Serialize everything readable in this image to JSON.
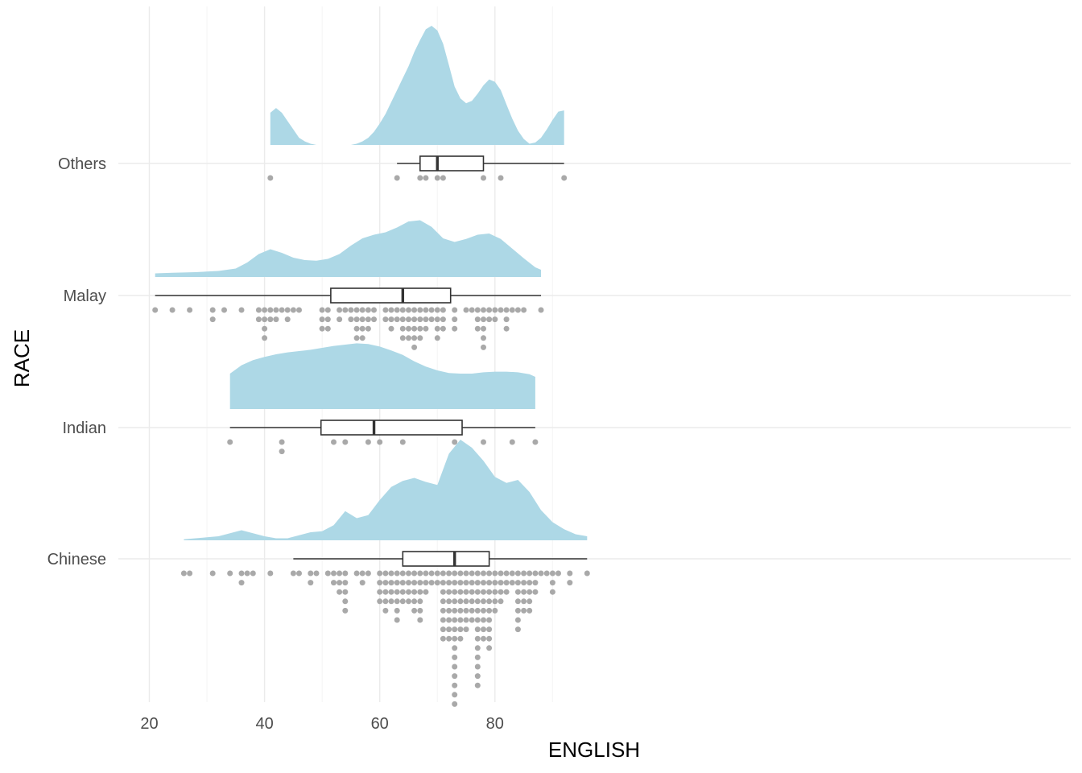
{
  "chart_data": {
    "type": "raincloud",
    "title": "",
    "xlabel": "ENGLISH",
    "ylabel": "RACE",
    "xlim": [
      18.5,
      97.5
    ],
    "x_ticks": [
      20,
      40,
      60,
      80
    ],
    "grid": true,
    "colors": {
      "density": "#add8e6",
      "box_stroke": "#333333",
      "dots": "#a9a9a9",
      "grid_major": "#ebebeb",
      "grid_minor": "#f5f5f5"
    },
    "categories": [
      "Chinese",
      "Indian",
      "Malay",
      "Others"
    ],
    "series": [
      {
        "name": "Chinese",
        "box": {
          "min": 45,
          "q1": 64,
          "median": 73,
          "q3": 79,
          "max": 96
        },
        "density_range": [
          26,
          96
        ],
        "density": [
          [
            26,
            0.01
          ],
          [
            28,
            0.02
          ],
          [
            30,
            0.03
          ],
          [
            32,
            0.04
          ],
          [
            34,
            0.07
          ],
          [
            36,
            0.1
          ],
          [
            38,
            0.07
          ],
          [
            40,
            0.04
          ],
          [
            42,
            0.02
          ],
          [
            44,
            0.02
          ],
          [
            46,
            0.05
          ],
          [
            48,
            0.08
          ],
          [
            50,
            0.09
          ],
          [
            52,
            0.15
          ],
          [
            54,
            0.29
          ],
          [
            56,
            0.22
          ],
          [
            58,
            0.25
          ],
          [
            60,
            0.4
          ],
          [
            62,
            0.53
          ],
          [
            64,
            0.59
          ],
          [
            66,
            0.62
          ],
          [
            68,
            0.58
          ],
          [
            70,
            0.55
          ],
          [
            72,
            0.86
          ],
          [
            74,
            1.0
          ],
          [
            76,
            0.92
          ],
          [
            78,
            0.79
          ],
          [
            80,
            0.63
          ],
          [
            82,
            0.57
          ],
          [
            84,
            0.6
          ],
          [
            86,
            0.48
          ],
          [
            88,
            0.3
          ],
          [
            90,
            0.18
          ],
          [
            92,
            0.11
          ],
          [
            94,
            0.06
          ],
          [
            96,
            0.04
          ]
        ],
        "dots": [
          [
            26,
            1
          ],
          [
            27,
            1
          ],
          [
            31,
            1
          ],
          [
            34,
            1
          ],
          [
            36,
            2
          ],
          [
            37,
            1
          ],
          [
            38,
            1
          ],
          [
            41,
            1
          ],
          [
            45,
            1
          ],
          [
            46,
            1
          ],
          [
            48,
            2
          ],
          [
            49,
            1
          ],
          [
            51,
            1
          ],
          [
            52,
            2
          ],
          [
            53,
            3
          ],
          [
            54,
            5
          ],
          [
            56,
            1
          ],
          [
            57,
            2
          ],
          [
            58,
            1
          ],
          [
            60,
            4
          ],
          [
            61,
            5
          ],
          [
            62,
            4
          ],
          [
            63,
            6
          ],
          [
            64,
            4
          ],
          [
            65,
            4
          ],
          [
            66,
            5
          ],
          [
            67,
            6
          ],
          [
            68,
            3
          ],
          [
            69,
            2
          ],
          [
            70,
            2
          ],
          [
            71,
            8
          ],
          [
            72,
            8
          ],
          [
            73,
            15
          ],
          [
            74,
            8
          ],
          [
            75,
            7
          ],
          [
            76,
            6
          ],
          [
            77,
            13
          ],
          [
            78,
            8
          ],
          [
            79,
            9
          ],
          [
            80,
            5
          ],
          [
            81,
            4
          ],
          [
            82,
            3
          ],
          [
            83,
            2
          ],
          [
            84,
            7
          ],
          [
            85,
            5
          ],
          [
            86,
            5
          ],
          [
            87,
            3
          ],
          [
            88,
            1
          ],
          [
            89,
            1
          ],
          [
            90,
            3
          ],
          [
            91,
            1
          ],
          [
            93,
            2
          ],
          [
            96,
            1
          ]
        ]
      },
      {
        "name": "Indian",
        "box": {
          "min": 34,
          "q1": 49.8,
          "median": 59,
          "q3": 74.3,
          "max": 87
        },
        "density_range": [
          34,
          87
        ],
        "density": [
          [
            34,
            0.55
          ],
          [
            36,
            0.68
          ],
          [
            38,
            0.76
          ],
          [
            40,
            0.81
          ],
          [
            42,
            0.85
          ],
          [
            44,
            0.88
          ],
          [
            46,
            0.9
          ],
          [
            48,
            0.92
          ],
          [
            50,
            0.95
          ],
          [
            52,
            0.98
          ],
          [
            54,
            1.0
          ],
          [
            56,
            1.02
          ],
          [
            58,
            1.01
          ],
          [
            60,
            0.97
          ],
          [
            62,
            0.91
          ],
          [
            64,
            0.84
          ],
          [
            66,
            0.74
          ],
          [
            68,
            0.66
          ],
          [
            70,
            0.6
          ],
          [
            72,
            0.56
          ],
          [
            74,
            0.55
          ],
          [
            76,
            0.55
          ],
          [
            78,
            0.57
          ],
          [
            80,
            0.58
          ],
          [
            82,
            0.58
          ],
          [
            84,
            0.57
          ],
          [
            86,
            0.54
          ],
          [
            87,
            0.5
          ]
        ],
        "dots": [
          [
            34,
            1
          ],
          [
            43,
            2
          ],
          [
            52,
            1
          ],
          [
            54,
            1
          ],
          [
            58,
            1
          ],
          [
            60,
            1
          ],
          [
            64,
            1
          ],
          [
            73,
            1
          ],
          [
            78,
            1
          ],
          [
            83,
            1
          ],
          [
            87,
            1
          ]
        ]
      },
      {
        "name": "Malay",
        "box": {
          "min": 21,
          "q1": 51.5,
          "median": 64,
          "q3": 72.3,
          "max": 88
        },
        "density_range": [
          21,
          88
        ],
        "density": [
          [
            21,
            0.06
          ],
          [
            24,
            0.07
          ],
          [
            28,
            0.08
          ],
          [
            32,
            0.1
          ],
          [
            35,
            0.14
          ],
          [
            37,
            0.24
          ],
          [
            39,
            0.38
          ],
          [
            41,
            0.46
          ],
          [
            43,
            0.4
          ],
          [
            45,
            0.32
          ],
          [
            47,
            0.28
          ],
          [
            49,
            0.27
          ],
          [
            51,
            0.3
          ],
          [
            53,
            0.38
          ],
          [
            55,
            0.52
          ],
          [
            57,
            0.64
          ],
          [
            59,
            0.7
          ],
          [
            61,
            0.74
          ],
          [
            63,
            0.82
          ],
          [
            65,
            0.92
          ],
          [
            67,
            0.94
          ],
          [
            69,
            0.83
          ],
          [
            71,
            0.64
          ],
          [
            73,
            0.58
          ],
          [
            75,
            0.63
          ],
          [
            77,
            0.7
          ],
          [
            79,
            0.72
          ],
          [
            81,
            0.63
          ],
          [
            83,
            0.47
          ],
          [
            85,
            0.31
          ],
          [
            87,
            0.16
          ],
          [
            88,
            0.12
          ]
        ],
        "dots": [
          [
            21,
            1
          ],
          [
            24,
            1
          ],
          [
            27,
            1
          ],
          [
            31,
            2
          ],
          [
            33,
            1
          ],
          [
            36,
            1
          ],
          [
            39,
            2
          ],
          [
            40,
            4
          ],
          [
            41,
            2
          ],
          [
            42,
            2
          ],
          [
            43,
            1
          ],
          [
            44,
            2
          ],
          [
            45,
            1
          ],
          [
            46,
            1
          ],
          [
            50,
            3
          ],
          [
            51,
            3
          ],
          [
            53,
            2
          ],
          [
            54,
            1
          ],
          [
            55,
            2
          ],
          [
            56,
            4
          ],
          [
            57,
            4
          ],
          [
            58,
            3
          ],
          [
            59,
            2
          ],
          [
            61,
            2
          ],
          [
            62,
            3
          ],
          [
            63,
            2
          ],
          [
            64,
            4
          ],
          [
            65,
            4
          ],
          [
            66,
            5
          ],
          [
            67,
            4
          ],
          [
            68,
            3
          ],
          [
            69,
            2
          ],
          [
            70,
            4
          ],
          [
            71,
            3
          ],
          [
            73,
            3
          ],
          [
            75,
            1
          ],
          [
            76,
            1
          ],
          [
            77,
            3
          ],
          [
            78,
            5
          ],
          [
            79,
            2
          ],
          [
            80,
            2
          ],
          [
            81,
            1
          ],
          [
            82,
            3
          ],
          [
            83,
            1
          ],
          [
            84,
            1
          ],
          [
            85,
            1
          ],
          [
            88,
            1
          ]
        ]
      },
      {
        "name": "Others",
        "box": {
          "min": 63,
          "q1": 67,
          "median": 70,
          "q3": 78,
          "max": 92
        },
        "density_range": [
          41,
          92
        ],
        "density": [
          [
            41,
            0.27
          ],
          [
            42,
            0.31
          ],
          [
            43,
            0.27
          ],
          [
            44,
            0.2
          ],
          [
            45,
            0.13
          ],
          [
            46,
            0.06
          ],
          [
            47,
            0.03
          ],
          [
            48,
            0.01
          ],
          [
            49,
            0.0
          ],
          [
            55,
            0.0
          ],
          [
            56,
            0.01
          ],
          [
            57,
            0.03
          ],
          [
            58,
            0.06
          ],
          [
            59,
            0.11
          ],
          [
            60,
            0.18
          ],
          [
            61,
            0.26
          ],
          [
            62,
            0.36
          ],
          [
            63,
            0.46
          ],
          [
            64,
            0.56
          ],
          [
            65,
            0.66
          ],
          [
            66,
            0.78
          ],
          [
            67,
            0.88
          ],
          [
            68,
            0.97
          ],
          [
            69,
            1.0
          ],
          [
            70,
            0.96
          ],
          [
            71,
            0.85
          ],
          [
            72,
            0.67
          ],
          [
            73,
            0.49
          ],
          [
            74,
            0.39
          ],
          [
            75,
            0.35
          ],
          [
            76,
            0.37
          ],
          [
            77,
            0.43
          ],
          [
            78,
            0.5
          ],
          [
            79,
            0.55
          ],
          [
            80,
            0.53
          ],
          [
            81,
            0.46
          ],
          [
            82,
            0.34
          ],
          [
            83,
            0.22
          ],
          [
            84,
            0.12
          ],
          [
            85,
            0.05
          ],
          [
            86,
            0.01
          ],
          [
            87,
            0.02
          ],
          [
            88,
            0.06
          ],
          [
            89,
            0.13
          ],
          [
            90,
            0.21
          ],
          [
            91,
            0.28
          ],
          [
            92,
            0.29
          ]
        ],
        "dots": [
          [
            41,
            1
          ],
          [
            63,
            1
          ],
          [
            67,
            1
          ],
          [
            68,
            1
          ],
          [
            70,
            1
          ],
          [
            71,
            1
          ],
          [
            78,
            1
          ],
          [
            81,
            1
          ],
          [
            92,
            1
          ]
        ]
      }
    ]
  }
}
